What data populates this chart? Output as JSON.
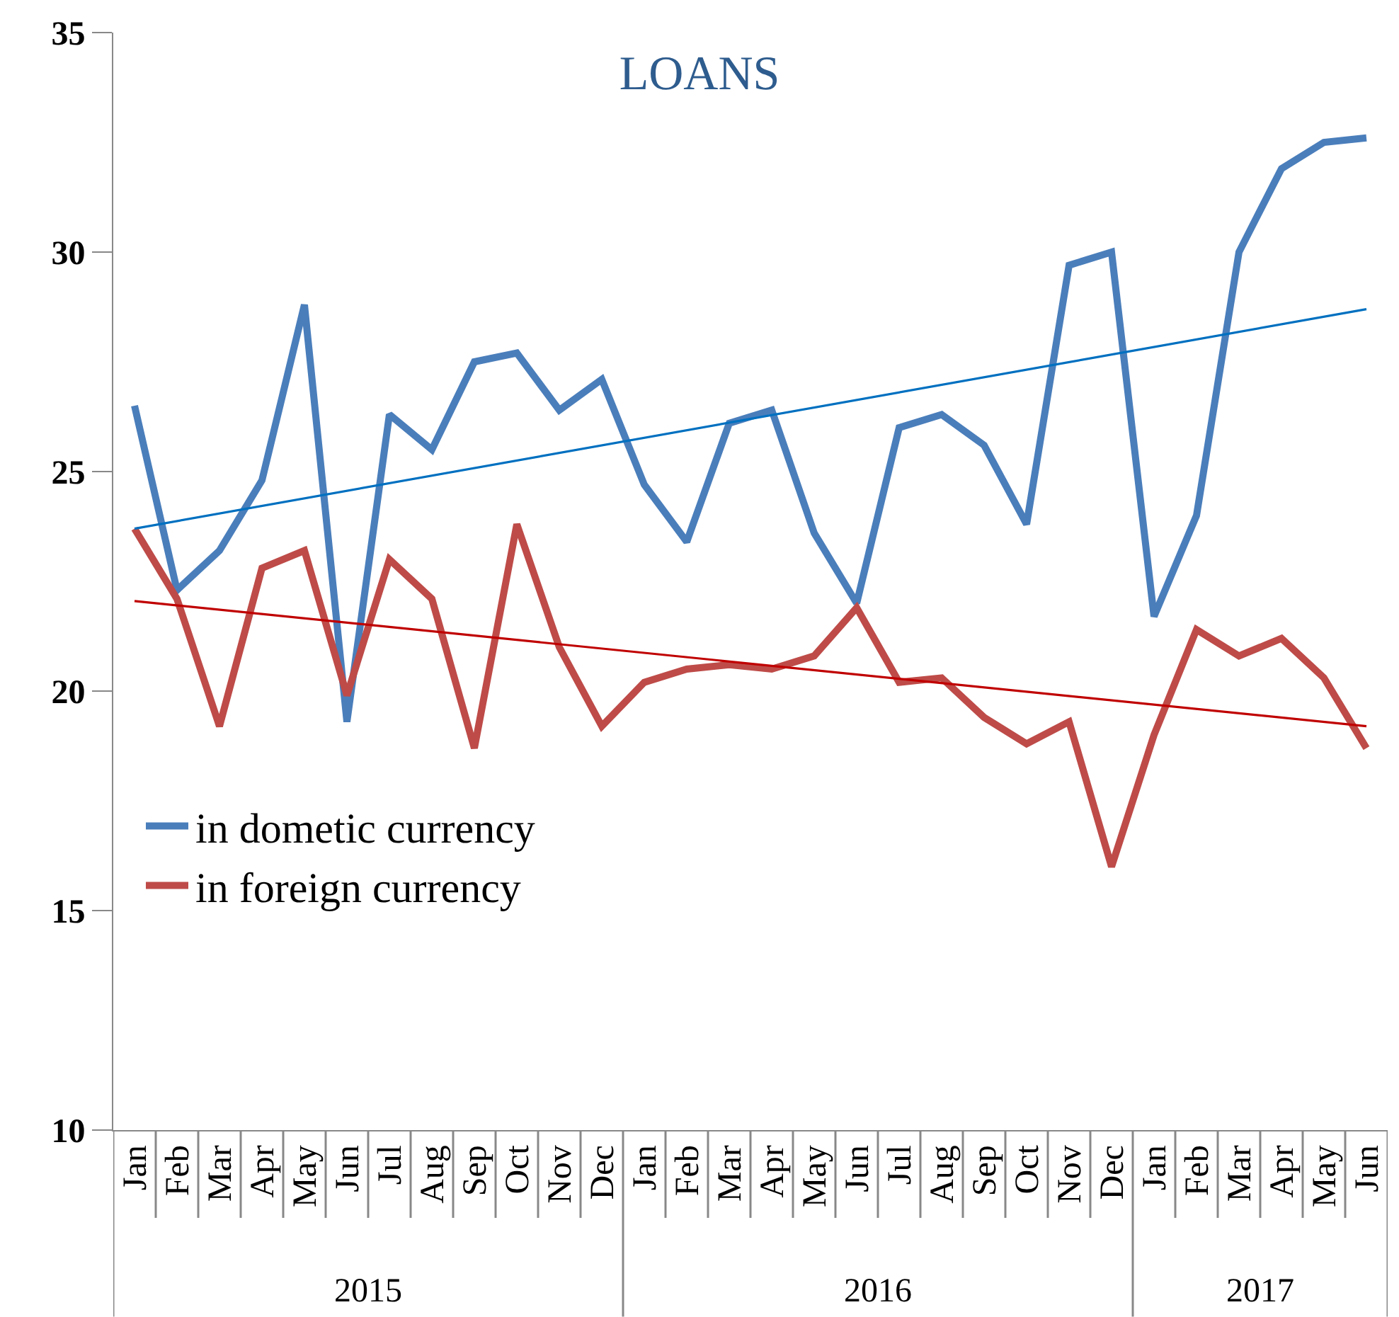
{
  "chart_data": {
    "type": "line",
    "title": "LOANS",
    "categories": [
      "Jan",
      "Feb",
      "Mar",
      "Apr",
      "May",
      "Jun",
      "Jul",
      "Aug",
      "Sep",
      "Oct",
      "Nov",
      "Dec",
      "Jan",
      "Feb",
      "Mar",
      "Apr",
      "May",
      "Jun",
      "Jul",
      "Aug",
      "Sep",
      "Oct",
      "Nov",
      "Dec",
      "Jan",
      "Feb",
      "Mar",
      "Apr",
      "May",
      "Jun"
    ],
    "series": [
      {
        "name": "in dometic currency",
        "color": "#4a7ebb",
        "values": [
          26.5,
          22.3,
          23.2,
          24.8,
          28.8,
          19.3,
          26.3,
          25.5,
          27.5,
          27.7,
          26.4,
          27.1,
          24.7,
          23.4,
          26.1,
          26.4,
          23.6,
          22.0,
          26.0,
          26.3,
          25.6,
          23.8,
          29.7,
          30.0,
          21.7,
          24.0,
          30.0,
          31.9,
          32.5,
          32.6
        ]
      },
      {
        "name": "in foreign currency",
        "color": "#be4b48",
        "values": [
          23.7,
          22.1,
          19.2,
          22.8,
          23.2,
          19.9,
          23.0,
          22.1,
          18.7,
          23.8,
          21.0,
          19.2,
          20.2,
          20.5,
          20.6,
          20.5,
          20.8,
          21.9,
          20.2,
          20.3,
          19.4,
          18.8,
          19.3,
          16.0,
          19.0,
          21.4,
          20.8,
          21.2,
          20.3,
          18.7
        ]
      },
      {
        "color": "#0070c0",
        "values": [
          23.7,
          null,
          null,
          null,
          null,
          null,
          null,
          null,
          null,
          null,
          null,
          null,
          null,
          null,
          null,
          null,
          null,
          null,
          null,
          null,
          null,
          null,
          null,
          null,
          null,
          null,
          null,
          null,
          null,
          28.7
        ]
      },
      {
        "color": "#c00000",
        "values": [
          22.05,
          null,
          null,
          null,
          null,
          null,
          null,
          null,
          null,
          null,
          null,
          null,
          null,
          null,
          null,
          null,
          null,
          null,
          null,
          null,
          null,
          null,
          null,
          null,
          null,
          null,
          null,
          null,
          null,
          19.2
        ]
      }
    ],
    "ylim": [
      10,
      35
    ],
    "yticks": [
      10,
      15,
      20,
      25,
      30,
      35
    ],
    "annotations": [
      "2015",
      "2016",
      "2017"
    ],
    "legend": "left",
    "marker": "none",
    "line_style": "solid"
  }
}
